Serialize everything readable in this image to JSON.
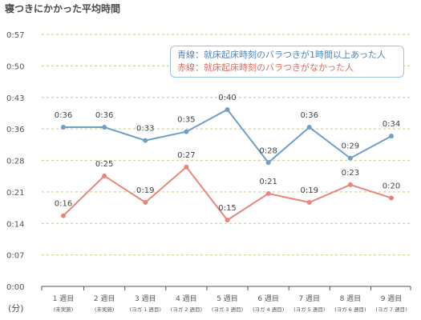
{
  "chart_data": {
    "type": "line",
    "title": "寝つきにかかった平均時間",
    "ylabel": "(分)",
    "ylim": [
      0,
      57
    ],
    "yticks": [
      "0:00",
      "0:07",
      "0:14",
      "0:21",
      "0:28",
      "0:36",
      "0:43",
      "0:50",
      "0:57"
    ],
    "ytick_values": [
      0,
      7.125,
      14.25,
      21.375,
      28.5,
      35.625,
      42.75,
      49.875,
      57
    ],
    "grid": true,
    "legend": "top-right",
    "categories": [
      {
        "main": "1 週目",
        "sub": "(未実施)"
      },
      {
        "main": "2 週目",
        "sub": "(未実施)"
      },
      {
        "main": "3 週目",
        "sub": "(ヨガ 1 週目)"
      },
      {
        "main": "4 週目",
        "sub": "(ヨガ 2 週目)"
      },
      {
        "main": "5 週目",
        "sub": "(ヨガ 3 週目)"
      },
      {
        "main": "6 週目",
        "sub": "(ヨガ 4 週目)"
      },
      {
        "main": "7 週目",
        "sub": "(ヨガ 5 週目)"
      },
      {
        "main": "8 週目",
        "sub": "(ヨガ 6 週目)"
      },
      {
        "main": "9 週目",
        "sub": "(ヨガ 7 週目)"
      }
    ],
    "series": [
      {
        "name": "青線：就床起床時刻のバラつきが1時間以上あった人",
        "color": "#6f9fc8",
        "values": [
          36,
          36,
          33,
          35,
          40,
          28,
          36,
          29,
          34
        ],
        "labels": [
          "0:36",
          "0:36",
          "0:33",
          "0:35",
          "0:40",
          "0:28",
          "0:36",
          "0:29",
          "0:34"
        ]
      },
      {
        "name": "赤線：就床起床時刻のバラつきがなかった人",
        "color": "#e8857c",
        "values": [
          16,
          25,
          19,
          27,
          15,
          21,
          19,
          23,
          20
        ],
        "labels": [
          "0:16",
          "0:25",
          "0:19",
          "0:27",
          "0:15",
          "0:21",
          "0:19",
          "0:23",
          "0:20"
        ]
      }
    ]
  },
  "colors": {
    "grid": "#cfd6a0",
    "axis": "#555555",
    "text": "#555555",
    "legend_border": "#9ec4e0"
  }
}
